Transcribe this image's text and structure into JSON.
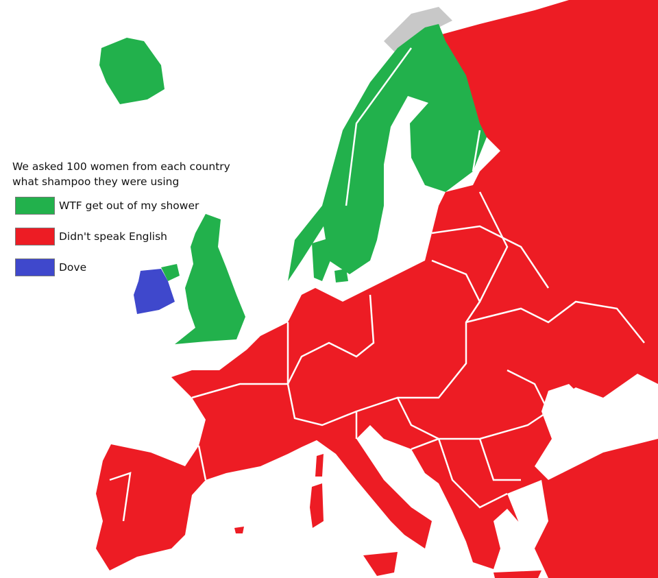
{
  "title_line1": "We asked 100 women from each country",
  "title_line2": "what shampoo they were using",
  "legend": [
    {
      "label": "WTF get out of my shower",
      "color": "#22b14c"
    },
    {
      "label": "Didn't speak English",
      "color": "#ed1c24"
    },
    {
      "label": "Dove",
      "color": "#3f48cc"
    }
  ],
  "colors": {
    "sea": "#ffffff",
    "outside": "#c8c8c8",
    "border": "#ffffff"
  }
}
